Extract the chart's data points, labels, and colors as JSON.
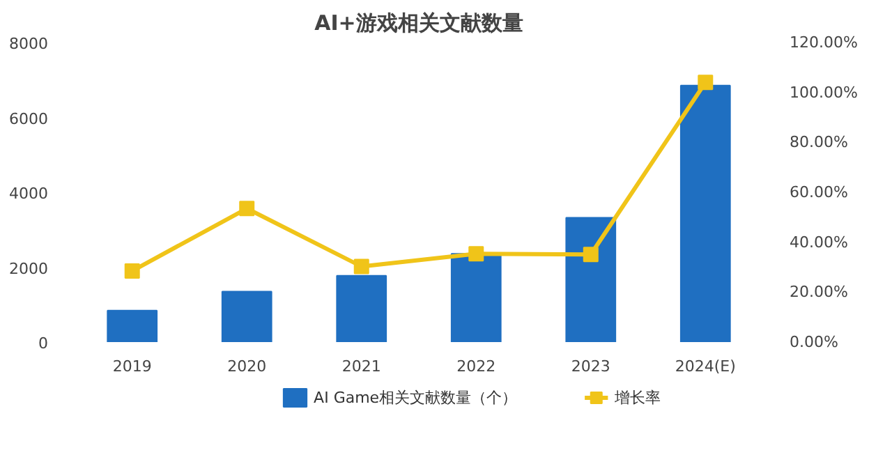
{
  "chart_data": {
    "type": "bar",
    "title": "AI+游戏相关文献数量",
    "categories": [
      "2019",
      "2020",
      "2021",
      "2022",
      "2023",
      "2024(E)"
    ],
    "series": [
      {
        "name": "AI Game相关文献数量（个）",
        "color": "#1f6fc1",
        "values": [
          840,
          1350,
          1770,
          2360,
          3320,
          6850
        ]
      },
      {
        "name": "增长率",
        "type": "line",
        "axis": "y2",
        "color": "#f0c419",
        "marker": "square",
        "values": [
          28.5,
          53.5,
          30.3,
          35.4,
          35.1,
          104
        ]
      }
    ],
    "ylim": [
      0,
      8000
    ],
    "yticks": [
      0,
      2000,
      4000,
      6000,
      8000
    ],
    "y2lim": [
      0,
      120
    ],
    "y2ticks": [
      {
        "value": 0,
        "label": "0.00%"
      },
      {
        "value": 20,
        "label": "20.00%"
      },
      {
        "value": 40,
        "label": "40.00%"
      },
      {
        "value": 60,
        "label": "60.00%"
      },
      {
        "value": 80,
        "label": "80.00%"
      },
      {
        "value": 100,
        "label": "100.00%"
      },
      {
        "value": 120,
        "label": "120.00%"
      }
    ],
    "grid": false,
    "legend": "bottom"
  }
}
